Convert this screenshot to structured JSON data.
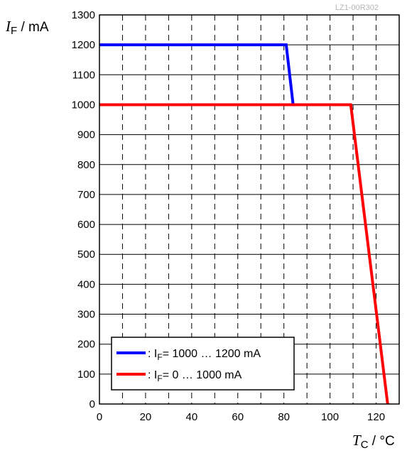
{
  "figure_code": "LZ1-00R302",
  "y_axis": {
    "var": "I",
    "sub": "F",
    "unit": " / mA"
  },
  "x_axis": {
    "var": "T",
    "sub": "C",
    "unit": " / °C"
  },
  "chart_data": {
    "type": "line",
    "xlim": [
      0,
      130
    ],
    "ylim": [
      0,
      1300
    ],
    "x_ticks": [
      0,
      20,
      40,
      60,
      80,
      100,
      120
    ],
    "y_ticks": [
      0,
      100,
      200,
      300,
      400,
      500,
      600,
      700,
      800,
      900,
      1000,
      1100,
      1200,
      1300
    ],
    "grid": {
      "x_major_step": 10,
      "x_dashed": true,
      "y_major_step": 100,
      "y_solid": true
    },
    "legend_position": "bottom-left",
    "series": [
      {
        "label_prefix": ": I",
        "label_sub": "F",
        "label_suffix": "= 1000 … 1200 mA",
        "color": "#0000ff",
        "points": [
          [
            0,
            1200
          ],
          [
            81,
            1200
          ],
          [
            84,
            1000
          ]
        ]
      },
      {
        "label_prefix": ": I",
        "label_sub": "F",
        "label_suffix": "= 0 … 1000 mA",
        "color": "#ff0000",
        "points": [
          [
            0,
            1000
          ],
          [
            109,
            1000
          ],
          [
            125,
            0
          ]
        ]
      }
    ]
  }
}
